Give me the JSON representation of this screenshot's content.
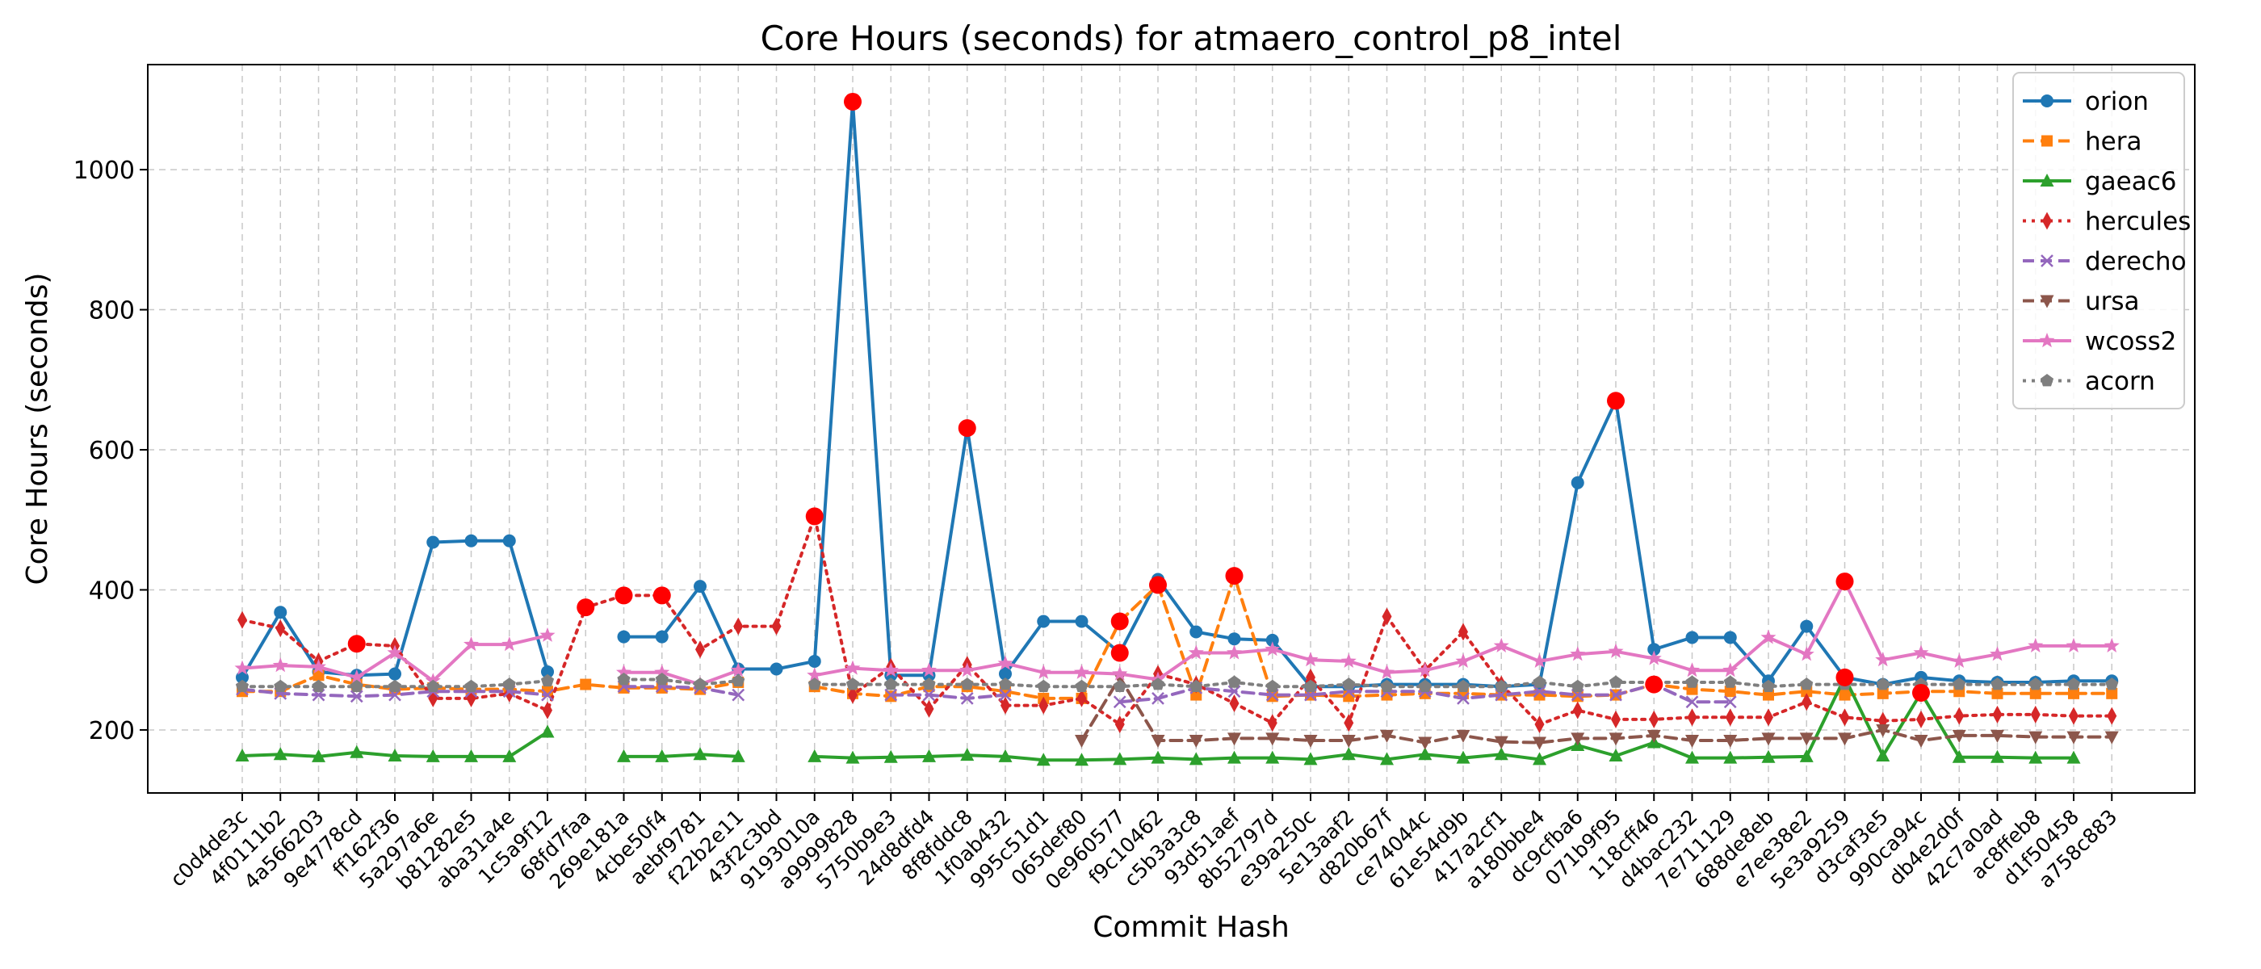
{
  "chart_data": {
    "type": "line",
    "title": "Core Hours (seconds) for atmaero_control_p8_intel",
    "xlabel": "Commit Hash",
    "ylabel": "Core Hours (seconds)",
    "ylim": [
      110,
      1150
    ],
    "yticks": [
      200,
      400,
      600,
      800,
      1000
    ],
    "grid": true,
    "legend_position": "top-right",
    "categories": [
      "c0d4de3c",
      "4f0111b2",
      "4a566203",
      "9e4778cd",
      "ff162f36",
      "5a297a6e",
      "b81282e5",
      "aba31a4e",
      "1c5a9f12",
      "68fd7faa",
      "269e181a",
      "4cbe50f4",
      "aebf9781",
      "f22b2e11",
      "43f2c3bd",
      "9193010a",
      "a9999828",
      "5750b9e3",
      "24d8dfd4",
      "8f8fddc8",
      "1f0ab432",
      "995c51d1",
      "065def80",
      "0e960577",
      "f9c10462",
      "c5b3a3c8",
      "93d51aef",
      "8b52797d",
      "e39a250c",
      "5e13aaf2",
      "d820b67f",
      "ce74044c",
      "61e54d9b",
      "417a2cf1",
      "a180bbe4",
      "dc9cfba6",
      "071b9f95",
      "118cff46",
      "d4bac232",
      "7e711129",
      "688de8eb",
      "e7ee38e2",
      "5e3a9259",
      "d3caf3e5",
      "990ca94c",
      "db4e2d0f",
      "42c7a0ad",
      "ac8ffeb8",
      "d1f50458",
      "a758c883"
    ],
    "series": [
      {
        "name": "orion",
        "color": "#1f77b4",
        "dash": "",
        "marker": "circle",
        "values": [
          275,
          368,
          283,
          278,
          280,
          468,
          470,
          470,
          283,
          null,
          333,
          333,
          405,
          287,
          287,
          298,
          1097,
          278,
          278,
          631,
          280,
          355,
          355,
          310,
          415,
          340,
          330,
          328,
          262,
          262,
          265,
          265,
          265,
          262,
          265,
          553,
          670,
          315,
          332,
          332,
          270,
          348,
          275,
          265,
          275,
          270,
          268,
          268,
          270,
          270
        ]
      },
      {
        "name": "hera",
        "color": "#ff7f0e",
        "dash": "14,8",
        "marker": "square",
        "values": [
          255,
          255,
          278,
          265,
          258,
          260,
          258,
          258,
          255,
          265,
          260,
          260,
          258,
          268,
          null,
          262,
          252,
          248,
          262,
          262,
          255,
          245,
          245,
          355,
          407,
          250,
          420,
          248,
          250,
          248,
          250,
          252,
          252,
          250,
          250,
          248,
          250,
          265,
          258,
          255,
          250,
          255,
          250,
          252,
          255,
          255,
          252,
          252,
          252,
          252
        ]
      },
      {
        "name": "gaeac6",
        "color": "#2ca02c",
        "dash": "",
        "marker": "triangle",
        "values": [
          163,
          165,
          162,
          168,
          163,
          162,
          162,
          162,
          197,
          null,
          162,
          162,
          165,
          162,
          null,
          162,
          160,
          161,
          162,
          164,
          162,
          157,
          157,
          158,
          160,
          158,
          160,
          160,
          158,
          165,
          158,
          165,
          160,
          165,
          158,
          178,
          163,
          182,
          160,
          160,
          161,
          162,
          275,
          163,
          253,
          161,
          161,
          160,
          160,
          null
        ]
      },
      {
        "name": "hercules",
        "color": "#d62728",
        "dash": "4,7",
        "marker": "diamond",
        "values": [
          357,
          345,
          298,
          323,
          320,
          245,
          245,
          252,
          228,
          375,
          392,
          392,
          315,
          348,
          348,
          505,
          250,
          290,
          230,
          293,
          235,
          235,
          245,
          208,
          280,
          265,
          238,
          210,
          275,
          210,
          362,
          285,
          340,
          265,
          208,
          228,
          215,
          215,
          218,
          218,
          218,
          240,
          218,
          213,
          215,
          220,
          222,
          222,
          220,
          220
        ]
      },
      {
        "name": "derecho",
        "color": "#9467bd",
        "dash": "14,8",
        "marker": "x",
        "values": [
          258,
          252,
          250,
          248,
          250,
          255,
          255,
          255,
          250,
          null,
          262,
          262,
          260,
          250,
          null,
          null,
          null,
          250,
          250,
          245,
          250,
          null,
          null,
          240,
          245,
          260,
          255,
          250,
          250,
          255,
          255,
          255,
          245,
          250,
          255,
          250,
          250,
          265,
          240,
          240,
          null,
          null,
          null,
          null,
          null,
          null,
          null,
          null,
          null,
          null
        ]
      },
      {
        "name": "ursa",
        "color": "#8c564b",
        "dash": "14,8",
        "marker": "tri-down",
        "values": [
          null,
          null,
          null,
          null,
          null,
          null,
          null,
          null,
          null,
          null,
          null,
          null,
          null,
          null,
          null,
          null,
          null,
          null,
          null,
          null,
          null,
          null,
          185,
          275,
          185,
          185,
          188,
          188,
          185,
          185,
          192,
          182,
          192,
          183,
          182,
          188,
          188,
          192,
          185,
          185,
          188,
          188,
          188,
          200,
          185,
          192,
          192,
          190,
          190,
          190
        ]
      },
      {
        "name": "wcoss2",
        "color": "#e377c2",
        "dash": "",
        "marker": "star",
        "values": [
          288,
          292,
          290,
          275,
          310,
          270,
          322,
          322,
          335,
          null,
          282,
          282,
          265,
          285,
          null,
          278,
          288,
          285,
          285,
          285,
          295,
          282,
          282,
          280,
          272,
          310,
          310,
          315,
          300,
          298,
          282,
          285,
          298,
          320,
          298,
          308,
          312,
          302,
          285,
          285,
          332,
          308,
          412,
          300,
          310,
          298,
          308,
          320,
          320,
          320
        ]
      },
      {
        "name": "acorn",
        "color": "#7f7f7f",
        "dash": "4,7",
        "marker": "pentagon",
        "values": [
          262,
          262,
          262,
          262,
          262,
          262,
          262,
          265,
          270,
          null,
          272,
          272,
          265,
          270,
          null,
          265,
          265,
          265,
          265,
          265,
          265,
          262,
          262,
          262,
          265,
          262,
          268,
          262,
          262,
          265,
          262,
          262,
          262,
          262,
          268,
          262,
          268,
          268,
          268,
          268,
          262,
          265,
          265,
          265,
          265,
          265,
          265,
          265,
          265,
          265
        ]
      }
    ],
    "highlights": {
      "color": "#ff0000",
      "points": [
        {
          "series": "hercules",
          "index": 3
        },
        {
          "series": "hercules",
          "index": 9
        },
        {
          "series": "hercules",
          "index": 10
        },
        {
          "series": "hercules",
          "index": 11
        },
        {
          "series": "hercules",
          "index": 15
        },
        {
          "series": "orion",
          "index": 16
        },
        {
          "series": "orion",
          "index": 19
        },
        {
          "series": "orion",
          "index": 23
        },
        {
          "series": "hera",
          "index": 23
        },
        {
          "series": "hera",
          "index": 24
        },
        {
          "series": "hera",
          "index": 26
        },
        {
          "series": "orion",
          "index": 36
        },
        {
          "series": "hera",
          "index": 37
        },
        {
          "series": "wcoss2",
          "index": 42
        },
        {
          "series": "orion",
          "index": 42
        },
        {
          "series": "gaeac6",
          "index": 44
        }
      ]
    }
  }
}
